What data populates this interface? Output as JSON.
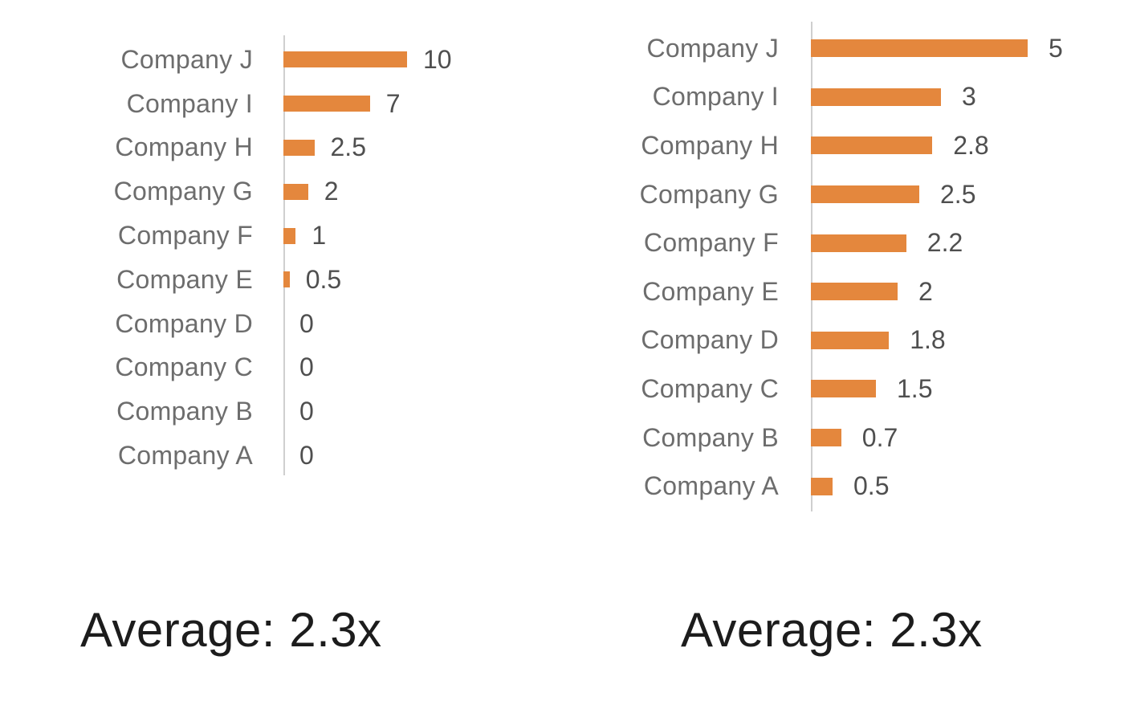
{
  "page": {
    "background": "#ffffff"
  },
  "colors": {
    "bar": "#e4873d",
    "axis_line": "#cfcfcf",
    "category_label": "#6d6d6d",
    "value_label": "#4f4f4f",
    "caption_text": "#1c1c1c"
  },
  "chart_data": [
    {
      "type": "bar",
      "orientation": "horizontal",
      "title": "",
      "xlabel": "",
      "ylabel": "",
      "xlim": [
        0,
        11
      ],
      "grid": false,
      "legend": false,
      "categories": [
        "Company J",
        "Company I",
        "Company H",
        "Company G",
        "Company F",
        "Company E",
        "Company D",
        "Company C",
        "Company B",
        "Company A"
      ],
      "values": [
        10,
        7,
        2.5,
        2,
        1,
        0.5,
        0,
        0,
        0,
        0
      ],
      "value_labels": [
        "10",
        "7",
        "2.5",
        "2",
        "1",
        "0.5",
        "0",
        "0",
        "0",
        "0"
      ],
      "caption": "Average: 2.3x"
    },
    {
      "type": "bar",
      "orientation": "horizontal",
      "title": "",
      "xlabel": "",
      "ylabel": "",
      "xlim": [
        0,
        5.5
      ],
      "grid": false,
      "legend": false,
      "categories": [
        "Company J",
        "Company I",
        "Company H",
        "Company G",
        "Company F",
        "Company E",
        "Company D",
        "Company C",
        "Company B",
        "Company A"
      ],
      "values": [
        5,
        3,
        2.8,
        2.5,
        2.2,
        2,
        1.8,
        1.5,
        0.7,
        0.5
      ],
      "value_labels": [
        "5",
        "3",
        "2.8",
        "2.5",
        "2.2",
        "2",
        "1.8",
        "1.5",
        "0.7",
        "0.5"
      ],
      "caption": "Average: 2.3x"
    }
  ]
}
